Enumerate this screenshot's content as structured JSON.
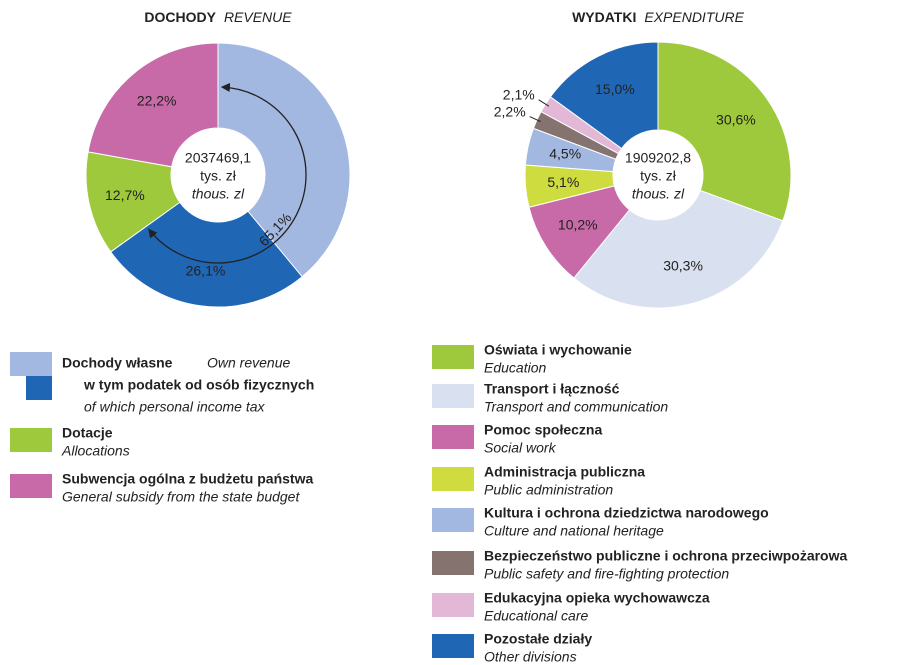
{
  "chart_data": [
    {
      "type": "pie",
      "title": "DOCHODY",
      "title_en": "REVENUE",
      "total": 2037469.1,
      "total_label": "2037469,1",
      "unit": "tys. zł",
      "unit_en": "thous. zl",
      "categories": [
        "Dochody własne",
        "Dotacje",
        "Subwencja ogólna z budżetu państwa"
      ],
      "categories_en": [
        "Own revenue",
        "Allocations",
        "General subsidy from the state budget"
      ],
      "values": [
        65.1,
        12.7,
        22.2
      ],
      "value_labels": [
        "65,1%",
        "12,7%",
        "22,2%"
      ],
      "colors": [
        "#a3b8e0",
        "#9fc93c",
        "#c86aa8"
      ],
      "subset": {
        "name": "w tym podatek od osób fizycznych",
        "name_en": "of which personal income tax",
        "value": 26.1,
        "value_label": "26,1%",
        "color": "#1f66b5"
      }
    },
    {
      "type": "pie",
      "title": "WYDATKI",
      "title_en": "EXPENDITURE",
      "total": 1909202.8,
      "total_label": "1909202,8",
      "unit": "tys. zł",
      "unit_en": "thous. zl",
      "categories": [
        "Oświata i wychowanie",
        "Transport i łączność",
        "Pomoc społeczna",
        "Administracja publiczna",
        "Kultura i ochrona dziedzictwa narodowego",
        "Bezpieczeństwo publiczne i ochrona przeciwpożarowa",
        "Edukacyjna opieka wychowawcza",
        "Pozostałe działy"
      ],
      "categories_en": [
        "Education",
        "Transport and communication",
        "Social work",
        "Public administration",
        "Culture and national heritage",
        "Public safety and fire-fighting protection",
        "Educational care",
        "Other divisions"
      ],
      "values": [
        30.6,
        30.3,
        10.2,
        5.1,
        4.5,
        2.2,
        2.1,
        15.0
      ],
      "value_labels": [
        "30,6%",
        "30,3%",
        "10,2%",
        "5,1%",
        "4,5%",
        "2,2%",
        "2,1%",
        "15,0%"
      ],
      "colors": [
        "#9fc93c",
        "#d9e0f0",
        "#c86aa8",
        "#cfdc40",
        "#a3b8e0",
        "#857370",
        "#e2b8d6",
        "#1f66b5"
      ]
    }
  ]
}
